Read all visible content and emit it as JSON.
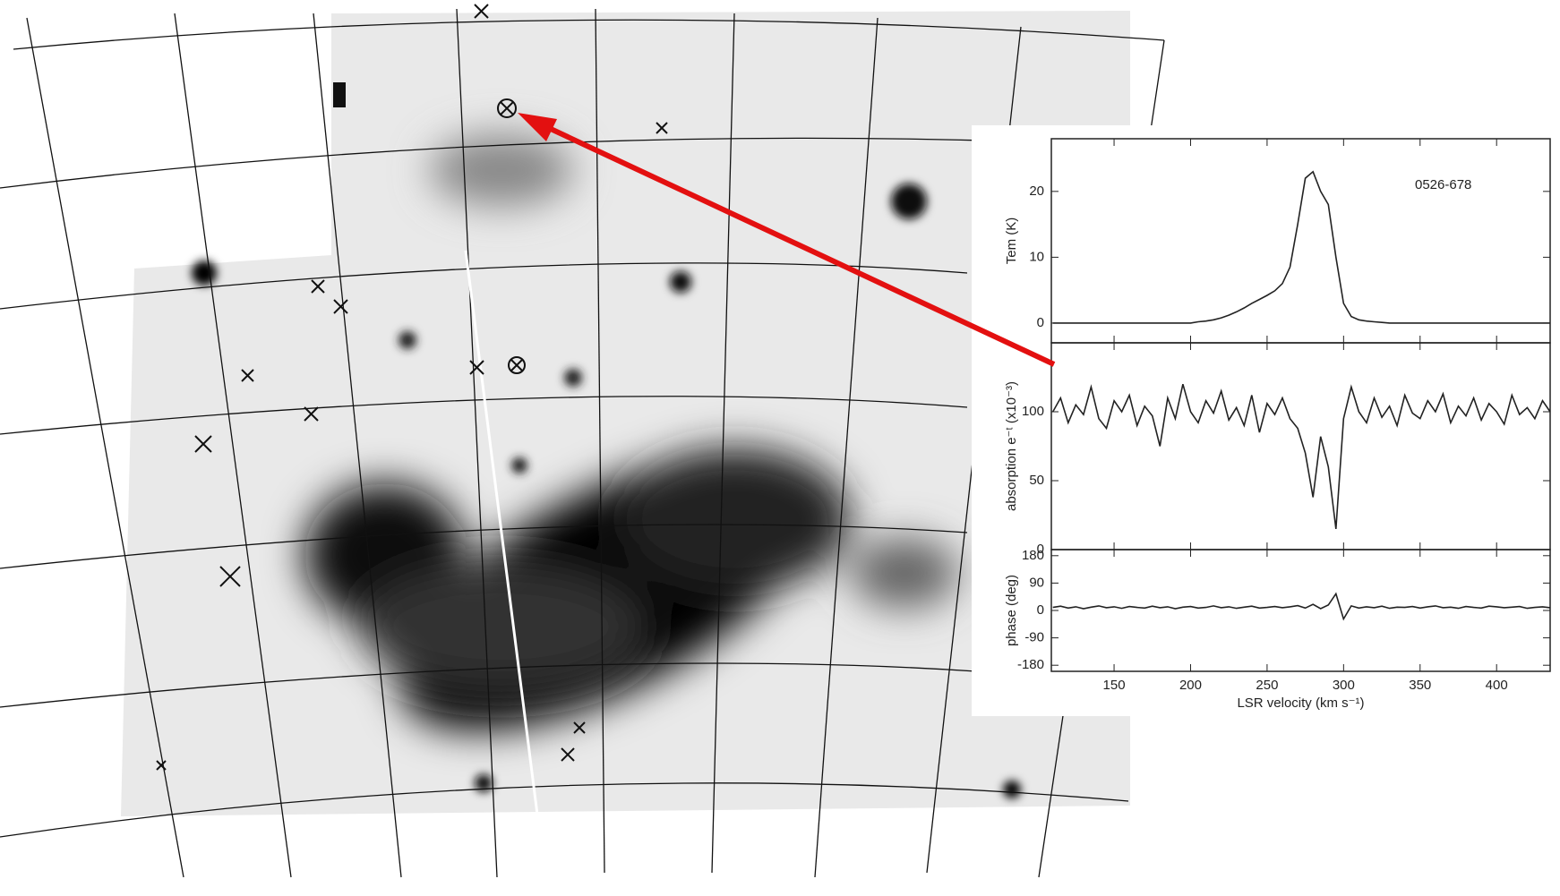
{
  "chart_data": [
    {
      "type": "line",
      "ylabel": "Tem (K)",
      "annotation": "0526-678",
      "xlim": [
        109,
        435
      ],
      "ylim": [
        -3,
        28
      ],
      "yticks": [
        0,
        10,
        20
      ],
      "series": [
        {
          "color": "#222222",
          "x": [
            110,
            115,
            120,
            125,
            130,
            135,
            140,
            145,
            150,
            155,
            160,
            165,
            170,
            175,
            180,
            185,
            190,
            195,
            200,
            205,
            210,
            215,
            220,
            225,
            230,
            235,
            240,
            245,
            250,
            255,
            260,
            265,
            270,
            275,
            280,
            285,
            290,
            295,
            300,
            305,
            310,
            315,
            320,
            325,
            330,
            335,
            340,
            345,
            350,
            355,
            360,
            365,
            370,
            375,
            380,
            385,
            390,
            395,
            400,
            405,
            410,
            415,
            420,
            425,
            430,
            435
          ],
          "values": [
            0,
            0,
            0,
            0,
            0,
            0,
            0,
            0,
            0,
            0,
            0,
            0,
            0,
            0,
            0,
            0,
            0,
            0,
            0,
            0.2,
            0.3,
            0.5,
            0.8,
            1.2,
            1.7,
            2.3,
            3,
            3.6,
            4.2,
            4.9,
            6,
            8.5,
            15,
            22,
            23,
            20,
            18,
            10,
            3,
            1,
            0.5,
            0.3,
            0.2,
            0.1,
            0,
            0,
            0,
            0,
            0,
            0,
            0,
            0,
            0,
            0,
            0,
            0,
            0,
            0,
            0,
            0,
            0,
            0,
            0,
            0,
            0,
            0
          ]
        }
      ]
    },
    {
      "type": "line",
      "ylabel": "absorption  e⁻ᵗ (x10⁻³)",
      "xlim": [
        109,
        435
      ],
      "ylim": [
        0,
        150
      ],
      "yticks": [
        0,
        50,
        100
      ],
      "series": [
        {
          "color": "#222222",
          "x": [
            110,
            115,
            120,
            125,
            130,
            135,
            140,
            145,
            150,
            155,
            160,
            165,
            170,
            175,
            180,
            185,
            190,
            195,
            200,
            205,
            210,
            215,
            220,
            225,
            230,
            235,
            240,
            245,
            250,
            255,
            260,
            265,
            270,
            275,
            280,
            285,
            290,
            295,
            300,
            305,
            310,
            315,
            320,
            325,
            330,
            335,
            340,
            345,
            350,
            355,
            360,
            365,
            370,
            375,
            380,
            385,
            390,
            395,
            400,
            405,
            410,
            415,
            420,
            425,
            430,
            435
          ],
          "values": [
            100,
            110,
            92,
            105,
            98,
            118,
            95,
            88,
            108,
            100,
            112,
            90,
            104,
            97,
            75,
            110,
            95,
            120,
            100,
            92,
            108,
            99,
            115,
            94,
            103,
            90,
            112,
            85,
            106,
            98,
            110,
            95,
            88,
            70,
            38,
            82,
            60,
            15,
            95,
            118,
            100,
            92,
            110,
            96,
            104,
            90,
            112,
            99,
            95,
            108,
            100,
            113,
            92,
            104,
            97,
            110,
            94,
            106,
            100,
            91,
            112,
            98,
            103,
            95,
            108,
            100
          ]
        }
      ]
    },
    {
      "type": "line",
      "ylabel": "phase (deg)",
      "xlabel": "LSR velocity (km s⁻¹)",
      "xlim": [
        109,
        435
      ],
      "ylim": [
        -200,
        200
      ],
      "yticks": [
        -180,
        -90,
        0,
        90,
        180
      ],
      "xticks": [
        150,
        200,
        250,
        300,
        350,
        400
      ],
      "series": [
        {
          "color": "#222222",
          "x": [
            110,
            115,
            120,
            125,
            130,
            135,
            140,
            145,
            150,
            155,
            160,
            165,
            170,
            175,
            180,
            185,
            190,
            195,
            200,
            205,
            210,
            215,
            220,
            225,
            230,
            235,
            240,
            245,
            250,
            255,
            260,
            265,
            270,
            275,
            280,
            285,
            290,
            295,
            300,
            305,
            310,
            315,
            320,
            325,
            330,
            335,
            340,
            345,
            350,
            355,
            360,
            365,
            370,
            375,
            380,
            385,
            390,
            395,
            400,
            405,
            410,
            415,
            420,
            425,
            430,
            435
          ],
          "values": [
            10,
            14,
            8,
            12,
            6,
            11,
            15,
            9,
            12,
            7,
            13,
            10,
            8,
            14,
            9,
            12,
            6,
            11,
            13,
            8,
            10,
            15,
            9,
            12,
            7,
            11,
            14,
            8,
            10,
            13,
            9,
            12,
            16,
            8,
            20,
            6,
            18,
            55,
            -28,
            15,
            8,
            12,
            9,
            14,
            7,
            11,
            10,
            13,
            8,
            12,
            15,
            9,
            11,
            7,
            13,
            10,
            8,
            14,
            12,
            9,
            11,
            13,
            7,
            10,
            12,
            9
          ]
        }
      ]
    }
  ]
}
